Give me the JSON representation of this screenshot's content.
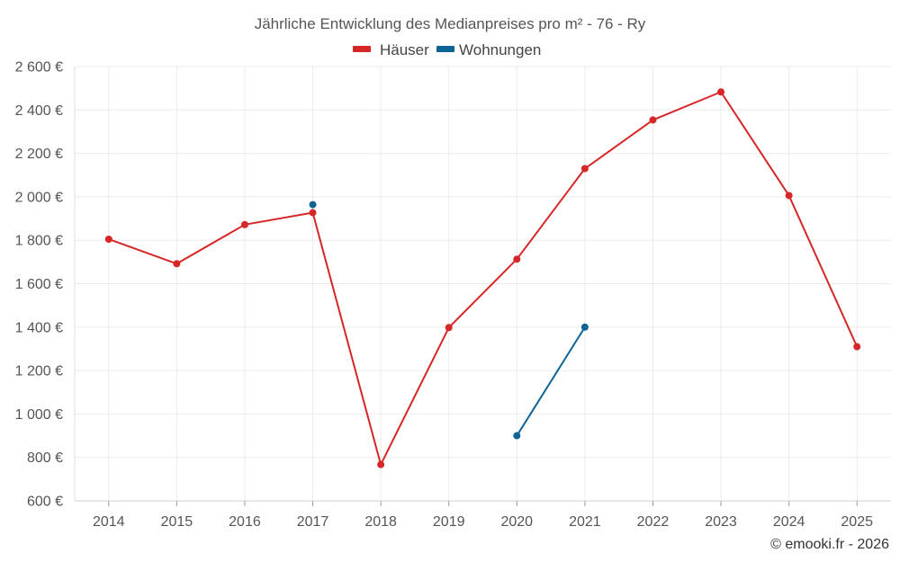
{
  "chart_data": {
    "type": "line",
    "title": "Jährliche Entwicklung des Medianpreises pro m² - 76 - Ry",
    "credit": "© emooki.fr - 2026",
    "categories": [
      "2014",
      "2015",
      "2016",
      "2017",
      "2018",
      "2019",
      "2020",
      "2021",
      "2022",
      "2023",
      "2024",
      "2025"
    ],
    "ylim": [
      600,
      2600
    ],
    "yticks": [
      600,
      800,
      1000,
      1200,
      1400,
      1600,
      1800,
      2000,
      2200,
      2400,
      2600
    ],
    "ytick_labels": [
      "600 €",
      "800 €",
      "1 000 €",
      "1 200 €",
      "1 400 €",
      "1 600 €",
      "1 800 €",
      "2 000 €",
      "2 200 €",
      "2 400 €",
      "2 600 €"
    ],
    "grid": true,
    "legend_position": "top-center",
    "series": [
      {
        "name": "Häuser",
        "color": "#d62728",
        "values": [
          1805,
          1692,
          1872,
          1927,
          767,
          1398,
          1713,
          2130,
          2354,
          2483,
          2006,
          1310
        ]
      },
      {
        "name": "Wohnungen",
        "color": "#0f6496",
        "values": [
          null,
          null,
          null,
          1964,
          null,
          null,
          900,
          1400,
          null,
          null,
          null,
          null
        ]
      }
    ]
  }
}
